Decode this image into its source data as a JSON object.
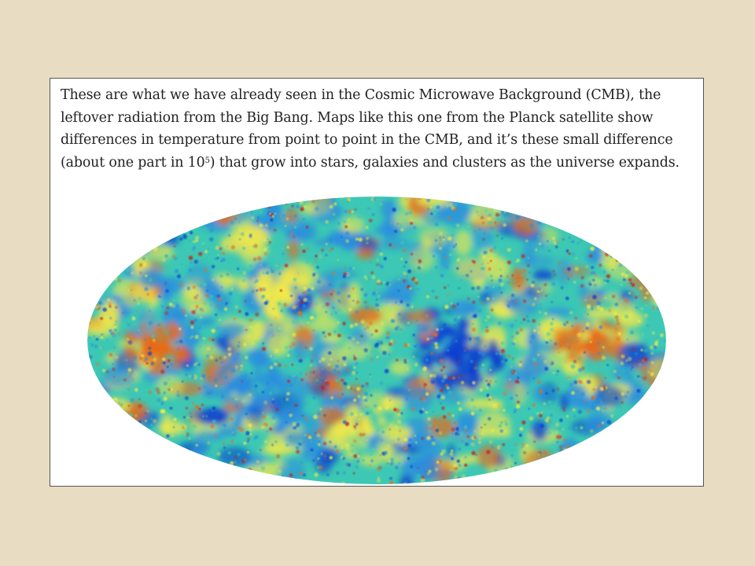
{
  "caption": {
    "text_before_exponent": "These are what we have already seen in the Cosmic Microwave Background (CMB), the leftover radiation from the Big Bang. Maps like this one from the Planck satellite show differences in temperature from point to point in the CMB, and it’s these small difference (about one part in 10",
    "exponent": "5",
    "text_after_exponent": ") that grow into stars, galaxies and clusters as the universe expands."
  },
  "figure": {
    "image": "planck-cmb-all-sky-map",
    "colors": {
      "base": "#3cc8b4",
      "cold": "#0a3fd0",
      "cool": "#2a8be0",
      "warm": "#f2e84a",
      "hot": "#e86a1a",
      "hottest": "#c0221a"
    }
  }
}
